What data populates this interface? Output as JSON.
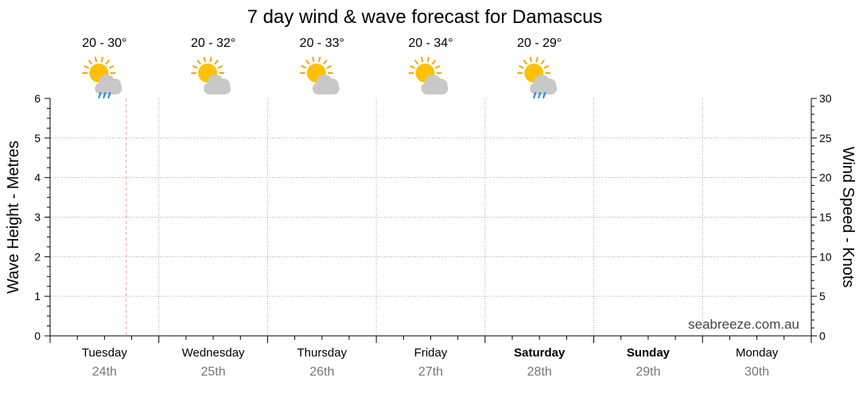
{
  "chart_data": {
    "type": "line",
    "title": "7 day wind & wave forecast for Damascus",
    "ylabel_left": "Wave Height - Metres",
    "ylabel_right": "Wind Speed - Knots",
    "ylim_left": [
      0,
      6
    ],
    "ylim_right": [
      0,
      30
    ],
    "yticks_left": [
      "0",
      "1",
      "2",
      "3",
      "4",
      "5",
      "6"
    ],
    "yticks_right": [
      "0",
      "5",
      "10",
      "15",
      "20",
      "25",
      "30"
    ],
    "grid": true,
    "days": [
      {
        "day": "Tuesday",
        "date": "24th",
        "weekend": false
      },
      {
        "day": "Wednesday",
        "date": "25th",
        "weekend": false
      },
      {
        "day": "Thursday",
        "date": "26th",
        "weekend": false
      },
      {
        "day": "Friday",
        "date": "27th",
        "weekend": false
      },
      {
        "day": "Saturday",
        "date": "28th",
        "weekend": true
      },
      {
        "day": "Sunday",
        "date": "29th",
        "weekend": true
      },
      {
        "day": "Monday",
        "date": "30th",
        "weekend": false
      }
    ],
    "forecasts": [
      {
        "temp": "20 - 30°",
        "icon": "sun-cloud-rain-icon",
        "rain": true
      },
      {
        "temp": "20 - 32°",
        "icon": "sun-cloud-icon",
        "rain": false
      },
      {
        "temp": "20 - 33°",
        "icon": "sun-cloud-icon",
        "rain": false
      },
      {
        "temp": "20 - 34°",
        "icon": "sun-cloud-icon",
        "rain": false
      },
      {
        "temp": "20 - 29°",
        "icon": "sun-cloud-rain-icon",
        "rain": true
      }
    ],
    "now_marker_fraction_of_day": 0.7,
    "series": [],
    "watermark": "seabreeze.com.au"
  },
  "colors": {
    "grid": "#aaaaaa",
    "axis": "#000000",
    "now_marker": "#f2a58f",
    "date_text": "#777777",
    "watermark": "#444444",
    "sun": "#ffc107",
    "sun_rays": "#f7a600",
    "cloud": "#c8c8c8",
    "rain": "#1e88e5"
  }
}
